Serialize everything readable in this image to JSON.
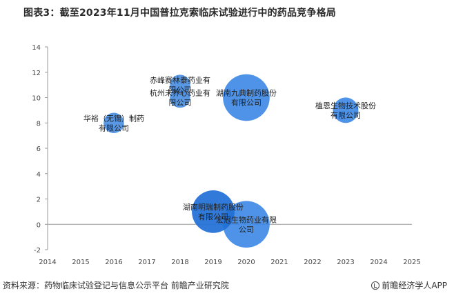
{
  "header": {
    "title": "图表3：截至2023年11月中国普拉克索临床试验进行中的药品竞争格局"
  },
  "chart_data": {
    "type": "bubble",
    "title": "图表3：截至2023年11月中国普拉克索临床试验进行中的药品竞争格局",
    "xlabel": "",
    "ylabel": "",
    "xlim": [
      2014,
      2025
    ],
    "ylim": [
      -2,
      14
    ],
    "x_ticks": [
      2014,
      2015,
      2016,
      2017,
      2018,
      2019,
      2020,
      2021,
      2022,
      2023,
      2024,
      2025
    ],
    "y_ticks": [
      -2,
      0,
      2,
      4,
      6,
      8,
      10,
      12,
      14
    ],
    "grid": false,
    "points": [
      {
        "label": "华裕（无锡）制药有限公司",
        "label_lines": [
          "华裕（无锡）制药",
          "有限公司"
        ],
        "x": 2016,
        "y": 8,
        "size": 1,
        "color": "#4a8fe3"
      },
      {
        "label": "赤峰赛林泰药业有限公司",
        "label_lines": [
          "赤峰赛林泰药业有",
          "限公司"
        ],
        "x": 2018,
        "y": 11,
        "size": 1,
        "color": "#4a8fe3"
      },
      {
        "label": "杭州未养心药业有限公司",
        "label_lines": [
          "杭州未养心药业有",
          "限公司"
        ],
        "x": 2018,
        "y": 10,
        "size": 1,
        "color": "#4a8fe3"
      },
      {
        "label": "湖南九典制药股份有限公司",
        "label_lines": [
          "湖南九典制药股份",
          "有限公司"
        ],
        "x": 2020,
        "y": 10,
        "size": 10,
        "color": "#3f8ae6"
      },
      {
        "label": "植恩生物技术股份有限公司",
        "label_lines": [
          "植恩生物技术股份",
          "有限公司"
        ],
        "x": 2023,
        "y": 9,
        "size": 2,
        "color": "#3f8ae6"
      },
      {
        "label": "湖南明瑞制药股份有限公司",
        "label_lines": [
          "湖南明瑞制药股份",
          "有限公司"
        ],
        "x": 2019,
        "y": 1,
        "size": 8,
        "color": "#1f6fd6"
      },
      {
        "label": "宏冠生物药业有限公司",
        "label_lines": [
          "宏冠生物药业有限",
          "公司"
        ],
        "x": 2020,
        "y": 0,
        "size": 10,
        "color": "#3f8ae6"
      }
    ]
  },
  "footer": {
    "source": "资料来源：药物临床试验登记与信息公示平台 前瞻产业研究院",
    "brand": "前瞻经济学人APP"
  }
}
